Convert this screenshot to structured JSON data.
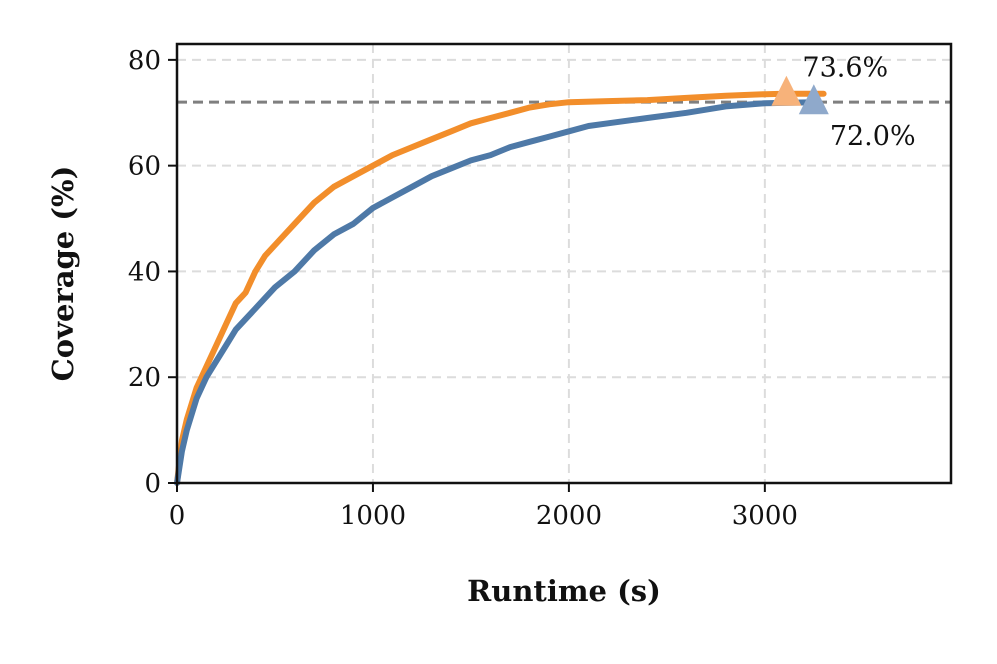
{
  "chart_data": {
    "type": "line",
    "title": "",
    "xlabel": "Runtime (s)",
    "ylabel": "Coverage (%)",
    "xlim": [
      0,
      3950
    ],
    "ylim": [
      0,
      83
    ],
    "xticks": [
      0,
      1000,
      2000,
      3000
    ],
    "yticks": [
      0,
      20,
      40,
      60,
      80
    ],
    "grid": true,
    "legend": "none",
    "reference_line": {
      "y": 72.0,
      "style": "dashed",
      "color": "#7f7f7f"
    },
    "series": [
      {
        "color": "#f28e2b",
        "x": [
          0,
          25,
          50,
          100,
          150,
          200,
          250,
          300,
          350,
          400,
          450,
          500,
          550,
          600,
          700,
          800,
          900,
          1000,
          1100,
          1200,
          1300,
          1400,
          1500,
          1600,
          1700,
          1800,
          1900,
          2000,
          2200,
          2400,
          2600,
          2800,
          3000,
          3100,
          3300
        ],
        "y": [
          0,
          8,
          12,
          18,
          22,
          26,
          30,
          34,
          36,
          40,
          43,
          45,
          47,
          49,
          53,
          56,
          58,
          60,
          62,
          63.5,
          65,
          66.5,
          68,
          69,
          70,
          71,
          71.6,
          72,
          72.2,
          72.4,
          72.8,
          73.2,
          73.5,
          73.6,
          73.6
        ]
      },
      {
        "color": "#4e79a7",
        "x": [
          0,
          25,
          50,
          100,
          150,
          200,
          250,
          300,
          400,
          500,
          600,
          700,
          800,
          900,
          1000,
          1100,
          1200,
          1300,
          1400,
          1500,
          1600,
          1700,
          1800,
          1900,
          2000,
          2100,
          2200,
          2400,
          2600,
          2800,
          3000,
          3250
        ],
        "y": [
          0,
          6,
          10,
          16,
          20,
          23,
          26,
          29,
          33,
          37,
          40,
          44,
          47,
          49,
          52,
          54,
          56,
          58,
          59.5,
          61,
          62,
          63.5,
          64.5,
          65.5,
          66.5,
          67.5,
          68,
          69,
          70,
          71.2,
          71.8,
          72.0
        ]
      }
    ],
    "markers": [
      {
        "x": 3110,
        "y": 73.6,
        "shape": "triangle",
        "color": "#f7b27a",
        "label": "73.6%"
      },
      {
        "x": 3250,
        "y": 72.0,
        "shape": "triangle",
        "color": "#8fa9cb",
        "label": "72.0%"
      }
    ]
  }
}
